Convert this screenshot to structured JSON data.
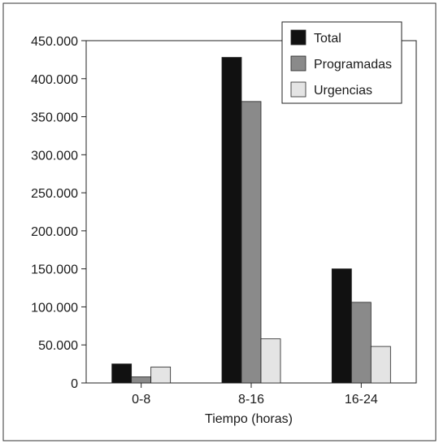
{
  "chart_data": {
    "type": "bar",
    "title": "",
    "xlabel": "Tiempo (horas)",
    "ylabel": "",
    "categories": [
      "0-8",
      "8-16",
      "16-24"
    ],
    "series": [
      {
        "name": "Total",
        "values": [
          25000,
          428000,
          150000
        ],
        "color": "#111111"
      },
      {
        "name": "Programadas",
        "values": [
          8000,
          370000,
          106000
        ],
        "color": "#8a8a8a"
      },
      {
        "name": "Urgencias",
        "values": [
          21000,
          58000,
          48000
        ],
        "color": "#e4e4e4"
      }
    ],
    "ylim": [
      0,
      450000
    ],
    "yticks": [
      0,
      50000,
      100000,
      150000,
      200000,
      250000,
      300000,
      350000,
      400000,
      450000
    ],
    "ytick_labels": [
      "0",
      "50.000",
      "100.000",
      "150.000",
      "200.000",
      "250.000",
      "300.000",
      "350.000",
      "400.000",
      "450.000"
    ],
    "legend_position": "top-right",
    "grid": false
  }
}
